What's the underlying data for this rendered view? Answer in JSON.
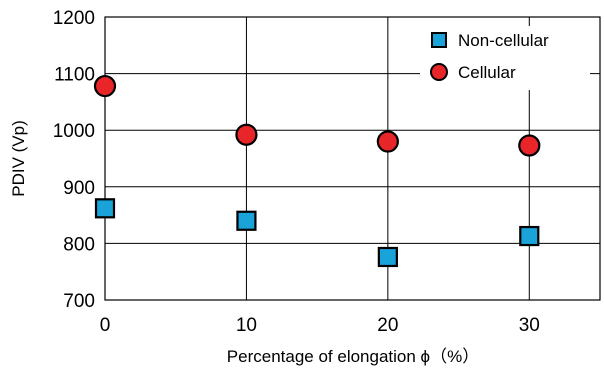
{
  "chart_data": {
    "type": "scatter",
    "title": "",
    "xlabel": "Percentage of elongation ϕ（%）",
    "ylabel": "PDIV (Vp)",
    "xlim": [
      0,
      35
    ],
    "ylim": [
      700,
      1200
    ],
    "xticks": [
      0,
      10,
      20,
      30
    ],
    "yticks": [
      700,
      800,
      900,
      1000,
      1100,
      1200
    ],
    "grid": true,
    "legend_position": "top-right",
    "series": [
      {
        "name": "Non-cellular",
        "marker": "square",
        "color": "#1aa3d9",
        "points": [
          {
            "x": 0,
            "y": 862
          },
          {
            "x": 10,
            "y": 840
          },
          {
            "x": 20,
            "y": 776
          },
          {
            "x": 30,
            "y": 813
          }
        ]
      },
      {
        "name": "Cellular",
        "marker": "circle",
        "color": "#e8262a",
        "points": [
          {
            "x": 0,
            "y": 1078
          },
          {
            "x": 10,
            "y": 992
          },
          {
            "x": 20,
            "y": 980
          },
          {
            "x": 30,
            "y": 973
          }
        ]
      }
    ]
  }
}
